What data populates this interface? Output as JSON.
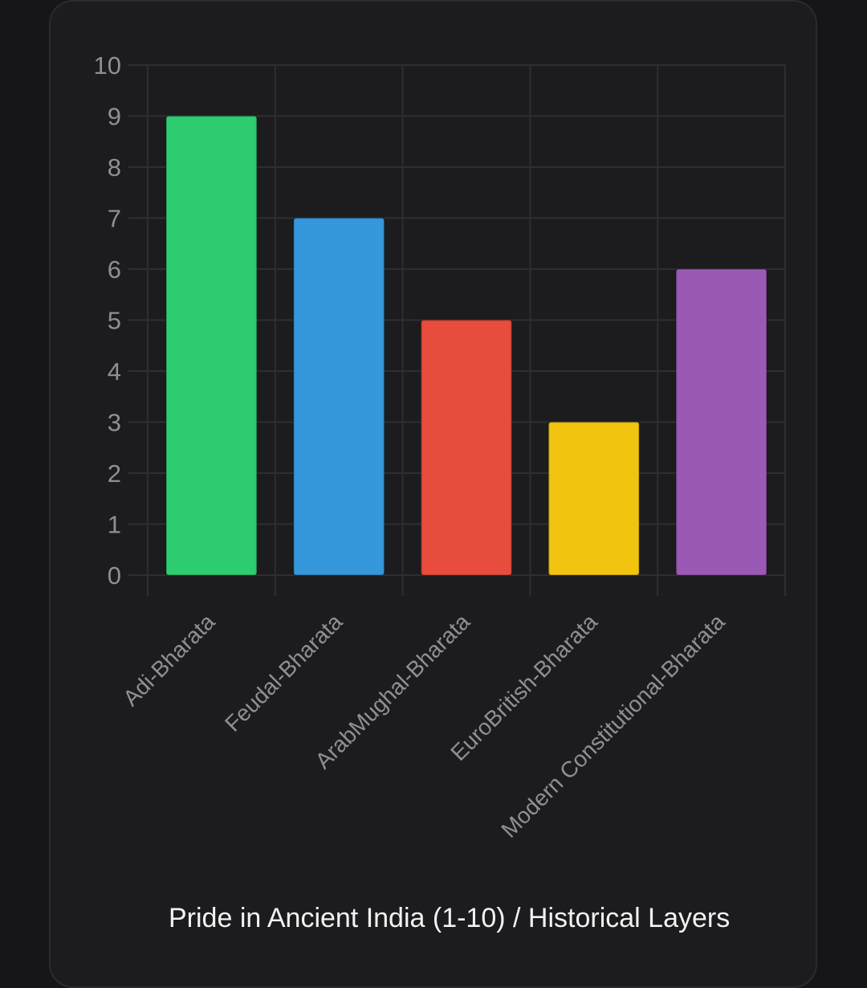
{
  "chart_data": {
    "type": "bar",
    "categories": [
      "Adi-Bharata",
      "Feudal-Bharata",
      "ArabMughal-Bharata",
      "EuroBritish-Bharata",
      "Modern Constitutional-Bharata"
    ],
    "values": [
      9,
      7,
      5,
      3,
      6
    ],
    "colors": [
      "#2ecc71",
      "#3498db",
      "#e74c3c",
      "#f1c40f",
      "#9b59b6"
    ],
    "title": "Pride in Ancient India (1-10) / Historical Layers",
    "ylim": [
      0,
      10
    ],
    "yticks": [
      0,
      1,
      2,
      3,
      4,
      5,
      6,
      7,
      8,
      9,
      10
    ],
    "grid": true,
    "legend": "none"
  }
}
